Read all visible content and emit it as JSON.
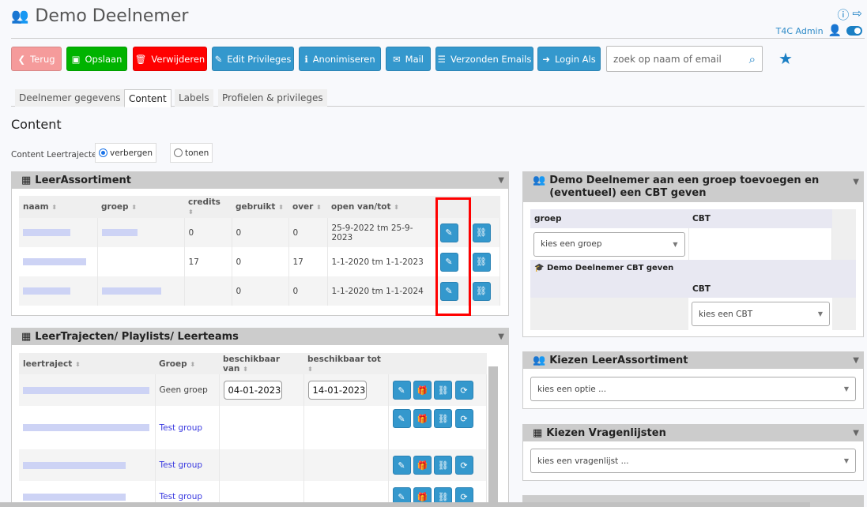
{
  "header": {
    "title": "Demo Deelnemer",
    "user": "T4C Admin"
  },
  "toolbar": {
    "back": "Terug",
    "save": "Opslaan",
    "delete": "Verwijderen",
    "edit_privileges": "Edit Privileges",
    "anonymize": "Anonimiseren",
    "mail": "Mail",
    "sent_emails": "Verzonden Emails",
    "login_as": "Login Als",
    "search_placeholder": "zoek op naam of email"
  },
  "colors": {
    "back": "#f59b9b",
    "save": "#00b300",
    "delete": "#ff0000",
    "primary": "#3498cd",
    "highlight": "#ff0000"
  },
  "tabs": [
    {
      "label": "Deelnemer gegevens"
    },
    {
      "label": "Content",
      "active": true
    },
    {
      "label": "Labels"
    },
    {
      "label": "Profielen & privileges"
    }
  ],
  "content": {
    "heading": "Content",
    "radio_label": "Content Leertrajecten",
    "options": [
      "verbergen",
      "tonen"
    ],
    "selected": "verbergen"
  },
  "leerassortiment": {
    "title": "LeerAssortiment",
    "columns": [
      "naam",
      "groep",
      "credits",
      "gebruikt",
      "over",
      "open van/tot"
    ],
    "rows": [
      {
        "credits": "0",
        "gebruikt": "0",
        "over": "0",
        "open": "25-9-2022 tm 25-9-2023"
      },
      {
        "credits": "17",
        "gebruikt": "0",
        "over": "17",
        "open": "1-1-2020 tm 1-1-2023"
      },
      {
        "credits": "",
        "gebruikt": "0",
        "over": "0",
        "open": "1-1-2020 tm 1-1-2024"
      }
    ]
  },
  "leertrajecten": {
    "title": "LeerTrajecten/ Playlists/ Leerteams",
    "columns": [
      "leertraject",
      "Groep",
      "beschikbaar van",
      "beschikbaar tot"
    ],
    "rows": [
      {
        "groep": "Geen groep",
        "van": "04-01-2023",
        "tot": "14-01-2023"
      },
      {
        "groep": "Test group"
      },
      {
        "groep": "Test group"
      },
      {
        "groep": "Test group"
      }
    ]
  },
  "group_panel": {
    "title": "Demo Deelnemer aan een groep toevoegen en (eventueel) een CBT geven",
    "col_groep": "groep",
    "col_cbt": "CBT",
    "groep_select": "kies een groep",
    "cbt_title": "Demo Deelnemer CBT geven",
    "cbt_col": "CBT",
    "cbt_select": "kies een CBT"
  },
  "kiezen_leerassortiment": {
    "title": "Kiezen LeerAssortiment",
    "select": "kies een optie ..."
  },
  "kiezen_vragenlijsten": {
    "title": "Kiezen Vragenlijsten",
    "select": "kies een vragenlijst ..."
  }
}
